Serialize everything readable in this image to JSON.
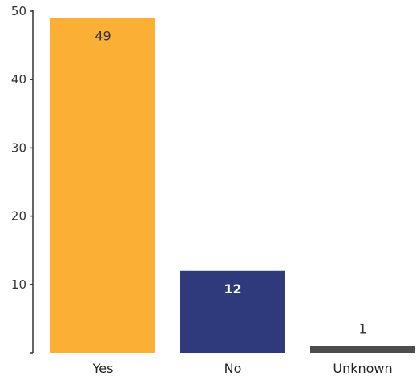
{
  "chart_data": {
    "type": "bar",
    "title": "",
    "xlabel": "",
    "ylabel": "",
    "ylim": [
      0,
      50
    ],
    "yticks": [
      10,
      20,
      30,
      40,
      50
    ],
    "grid": false,
    "categories": [
      "Yes",
      "No",
      "Unknown"
    ],
    "values": [
      49,
      12,
      1
    ],
    "colors": [
      "#FBAF35",
      "#2E3A7C",
      "#4D4D4D"
    ],
    "value_label_colors": [
      "#333333",
      "#ffffff",
      "#333333"
    ]
  }
}
